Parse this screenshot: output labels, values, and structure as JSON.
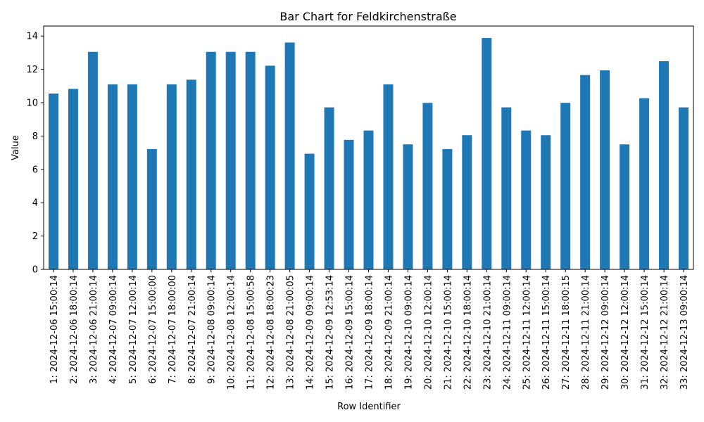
{
  "colors": {
    "bar": "#1f77b4",
    "axis": "#000000",
    "background": "#ffffff"
  },
  "chart_data": {
    "type": "bar",
    "title": "Bar Chart for Feldkirchenstraße",
    "xlabel": "Row Identifier",
    "ylabel": "Value",
    "ylim": [
      0,
      14.6
    ],
    "yticks": [
      0,
      2,
      4,
      6,
      8,
      10,
      12,
      14
    ],
    "grid": false,
    "legend": "none",
    "categories": [
      "1: 2024-12-06 15:00:14",
      "2: 2024-12-06 18:00:14",
      "3: 2024-12-06 21:00:14",
      "4: 2024-12-07 09:00:14",
      "5: 2024-12-07 12:00:14",
      "6: 2024-12-07 15:00:00",
      "7: 2024-12-07 18:00:00",
      "8: 2024-12-07 21:00:14",
      "9: 2024-12-08 09:00:14",
      "10: 2024-12-08 12:00:14",
      "11: 2024-12-08 15:00:58",
      "12: 2024-12-08 18:00:23",
      "13: 2024-12-08 21:00:05",
      "14: 2024-12-09 09:00:14",
      "15: 2024-12-09 12:53:14",
      "16: 2024-12-09 15:00:14",
      "17: 2024-12-09 18:00:14",
      "18: 2024-12-09 21:00:14",
      "19: 2024-12-10 09:00:14",
      "20: 2024-12-10 12:00:14",
      "21: 2024-12-10 15:00:14",
      "22: 2024-12-10 18:00:14",
      "23: 2024-12-10 21:00:14",
      "24: 2024-12-11 09:00:14",
      "25: 2024-12-11 12:00:14",
      "26: 2024-12-11 15:00:14",
      "27: 2024-12-11 18:00:15",
      "28: 2024-12-11 21:00:14",
      "29: 2024-12-12 09:00:14",
      "30: 2024-12-12 12:00:14",
      "31: 2024-12-12 15:00:14",
      "32: 2024-12-12 21:00:14",
      "33: 2024-12-13 09:00:14"
    ],
    "values": [
      10.55,
      10.83,
      13.05,
      11.1,
      11.1,
      7.22,
      11.1,
      11.38,
      13.05,
      13.05,
      13.05,
      12.22,
      13.61,
      6.94,
      9.72,
      7.77,
      8.33,
      11.1,
      7.5,
      9.99,
      7.22,
      8.05,
      13.88,
      9.72,
      8.33,
      8.05,
      9.99,
      11.66,
      11.94,
      7.5,
      10.27,
      12.49,
      9.72
    ]
  }
}
